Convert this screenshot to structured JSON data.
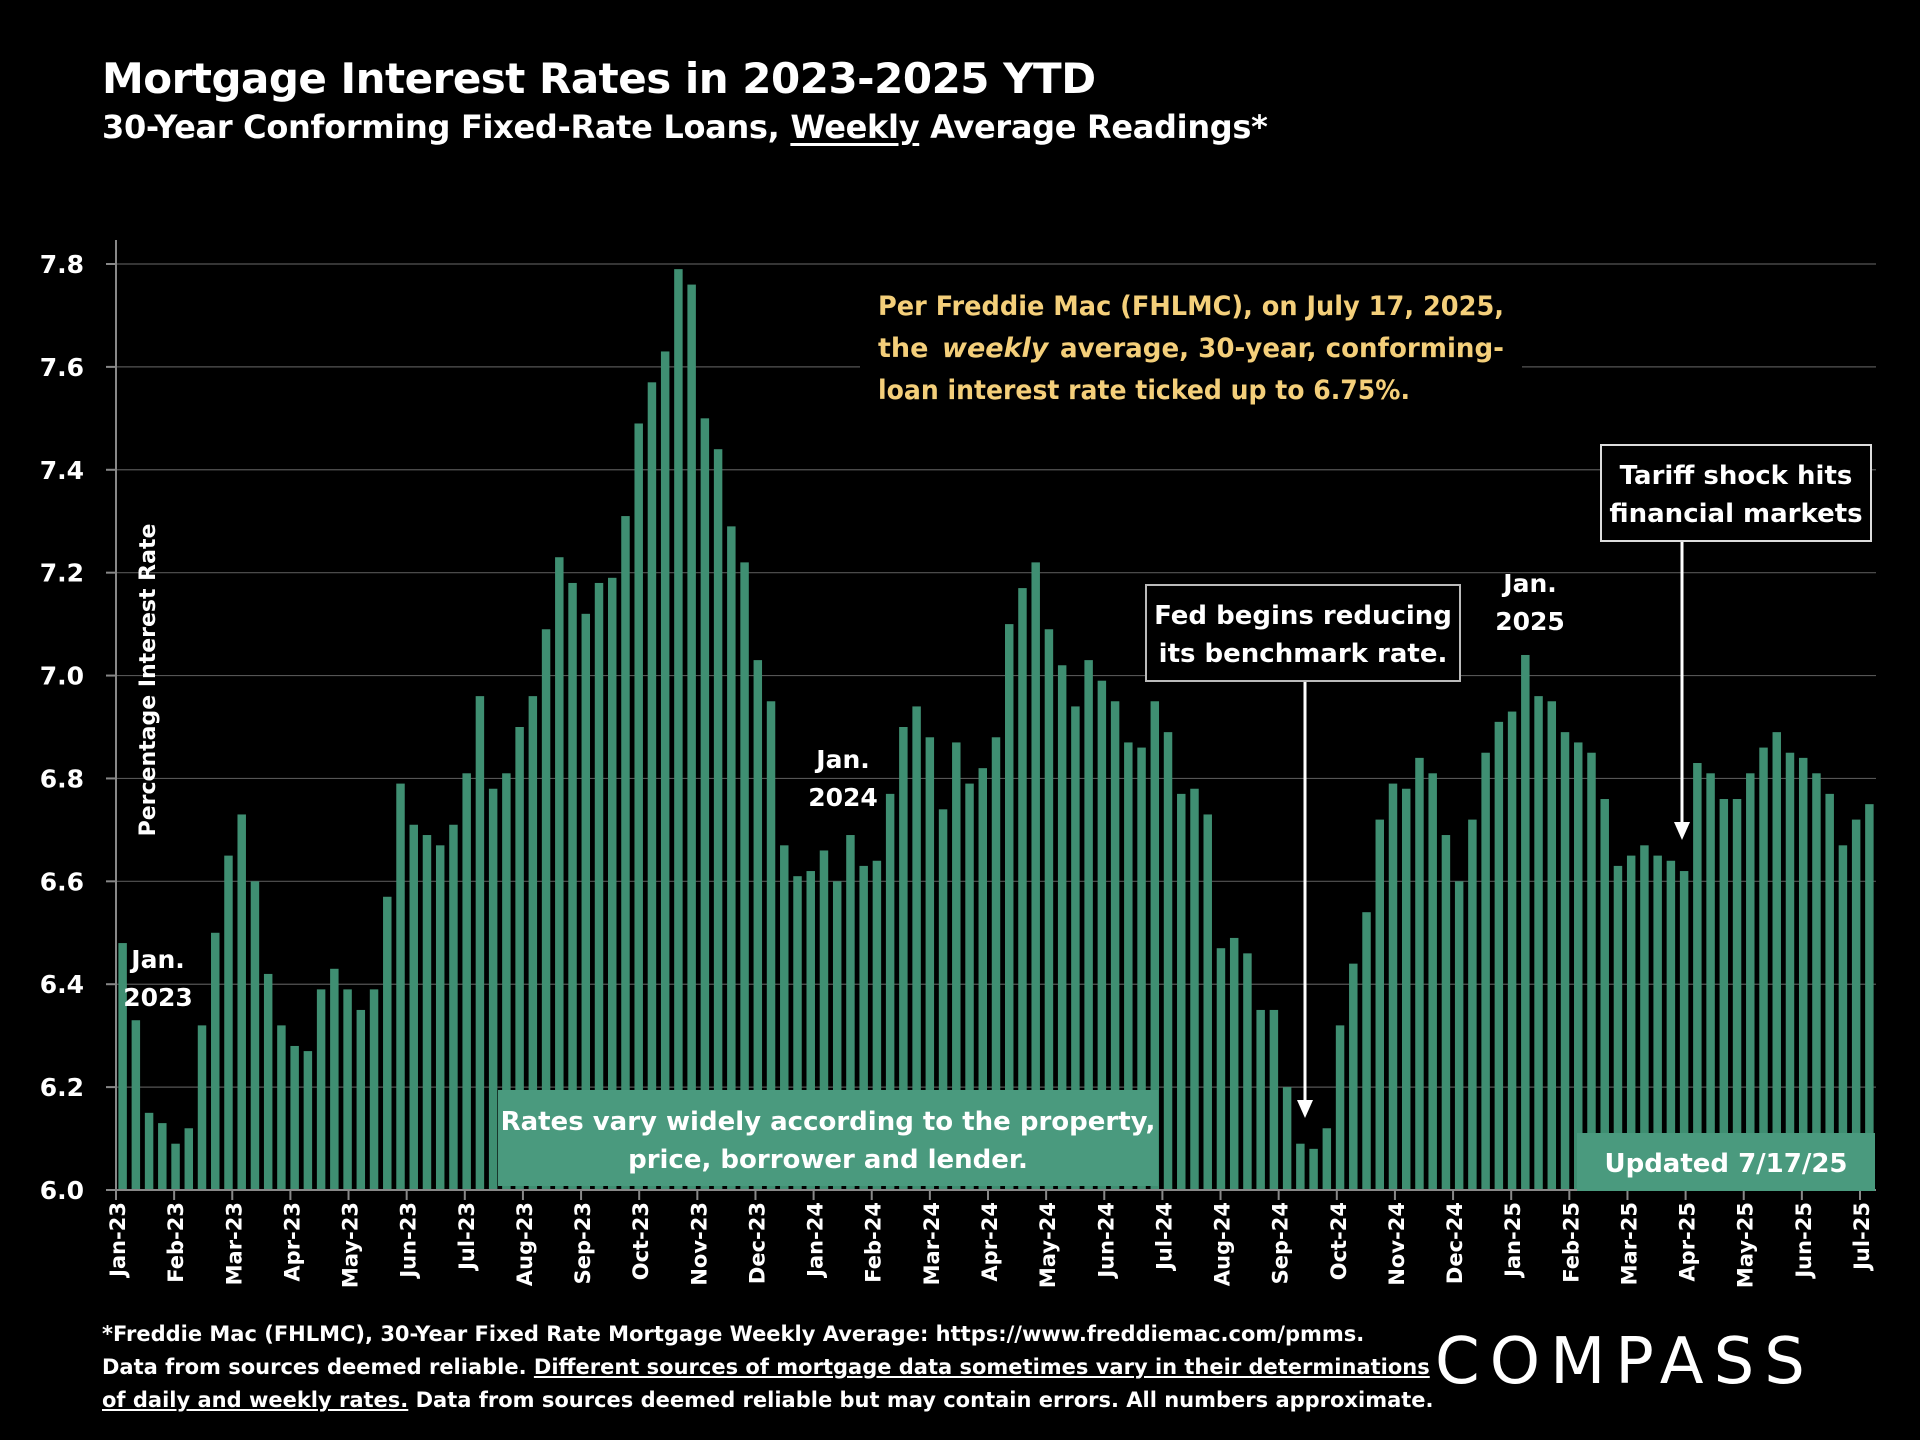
{
  "header": {
    "title": "Mortgage Interest Rates in 2023-2025 YTD",
    "subtitle_pre": "30-Year Conforming Fixed-Rate Loans, ",
    "subtitle_underlined": "Weekly",
    "subtitle_post": " Average Readings*"
  },
  "colors": {
    "bar": "#3f8f72",
    "background": "#000000",
    "callout_text": "#f4cf7a",
    "grid": "#555555"
  },
  "chart_data": {
    "type": "bar",
    "ylabel": "Percentage Interest  Rate",
    "ylim": [
      6.0,
      7.8
    ],
    "yticks": [
      "6.0",
      "6.2",
      "6.4",
      "6.6",
      "6.8",
      "7.0",
      "7.2",
      "7.4",
      "7.6",
      "7.8"
    ],
    "grid": true,
    "month_labels": [
      "Jan-23",
      "Feb-23",
      "Mar-23",
      "Apr-23",
      "May-23",
      "Jun-23",
      "Jul-23",
      "Aug-23",
      "Sep-23",
      "Oct-23",
      "Nov-23",
      "Dec-23",
      "Jan-24",
      "Feb-24",
      "Mar-24",
      "Apr-24",
      "May-24",
      "Jun-24",
      "Jul-24",
      "Aug-24",
      "Sep-24",
      "Oct-24",
      "Nov-24",
      "Dec-24",
      "Jan-25",
      "Feb-25",
      "Mar-25",
      "Apr-25",
      "May-25",
      "Jun-25",
      "Jul-25"
    ],
    "values": [
      6.48,
      6.33,
      6.15,
      6.13,
      6.09,
      6.12,
      6.32,
      6.5,
      6.65,
      6.73,
      6.6,
      6.42,
      6.32,
      6.28,
      6.27,
      6.39,
      6.43,
      6.39,
      6.35,
      6.39,
      6.57,
      6.79,
      6.71,
      6.69,
      6.67,
      6.71,
      6.81,
      6.96,
      6.78,
      6.81,
      6.9,
      6.96,
      7.09,
      7.23,
      7.18,
      7.12,
      7.18,
      7.19,
      7.31,
      7.49,
      7.57,
      7.63,
      7.79,
      7.76,
      7.5,
      7.44,
      7.29,
      7.22,
      7.03,
      6.95,
      6.67,
      6.61,
      6.62,
      6.66,
      6.6,
      6.69,
      6.63,
      6.64,
      6.77,
      6.9,
      6.94,
      6.88,
      6.74,
      6.87,
      6.79,
      6.82,
      6.88,
      7.1,
      7.17,
      7.22,
      7.09,
      7.02,
      6.94,
      7.03,
      6.99,
      6.95,
      6.87,
      6.86,
      6.95,
      6.89,
      6.77,
      6.78,
      6.73,
      6.47,
      6.49,
      6.46,
      6.35,
      6.35,
      6.2,
      6.09,
      6.08,
      6.12,
      6.32,
      6.44,
      6.54,
      6.72,
      6.79,
      6.78,
      6.84,
      6.81,
      6.69,
      6.6,
      6.72,
      6.85,
      6.91,
      6.93,
      7.04,
      6.96,
      6.95,
      6.89,
      6.87,
      6.85,
      6.76,
      6.63,
      6.65,
      6.67,
      6.65,
      6.64,
      6.62,
      6.83,
      6.81,
      6.76,
      6.76,
      6.81,
      6.86,
      6.89,
      6.85,
      6.84,
      6.81,
      6.77,
      6.67,
      6.72,
      6.75
    ]
  },
  "annotations": {
    "jan2023_line1": "Jan.",
    "jan2023_line2": "2023",
    "jan2024_line1": "Jan.",
    "jan2024_line2": "2024",
    "jan2025_line1": "Jan.",
    "jan2025_line2": "2025",
    "freddie_line1": "Per Freddie Mac (FHLMC), on July 17, 2025,",
    "freddie_line2_a": "the",
    "freddie_line2_b": "weekly",
    "freddie_line2_c": "average,  30-year,  conforming-",
    "freddie_line3": "loan interest rate ticked up to 6.75%.",
    "fed_line1": "Fed begins reducing",
    "fed_line2": "its benchmark rate.",
    "tariff_line1": "Tariff shock hits",
    "tariff_line2": "financial markets",
    "rates_line1": "Rates vary widely according to the property,",
    "rates_line2": "price, borrower and lender.",
    "updated": "Updated 7/17/25"
  },
  "footnote": {
    "line1": "*Freddie Mac (FHLMC), 30-Year Fixed Rate Mortgage Weekly Average:  https://www.freddiemac.com/pmms.",
    "line2_a": "Data from sources deemed reliable. ",
    "line2_b": "Different sources of mortgage data sometimes vary in their determinations",
    "line3_a": "of daily and weekly rates.",
    "line3_b": " Data from sources deemed reliable but may contain errors. All numbers approximate."
  },
  "logo": "COMPASS"
}
